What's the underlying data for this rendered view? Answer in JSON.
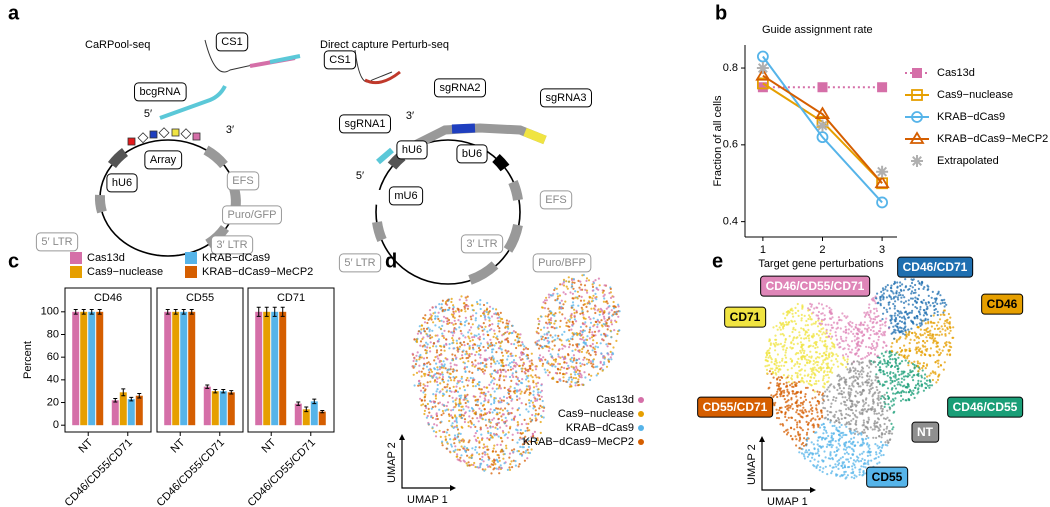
{
  "panel_labels": [
    "a",
    "b",
    "c",
    "d",
    "e"
  ],
  "diagram": {
    "left": {
      "title": "CaRPool-seq",
      "labels": [
        "CS1",
        "bcgRNA",
        "5′",
        "3′",
        "Array",
        "hU6",
        "EFS",
        "5′ LTR",
        "Puro/GFP",
        "3′ LTR"
      ]
    },
    "right": {
      "title": "Direct capture Perturb-seq",
      "labels": [
        "CS1",
        "sgRNA2",
        "sgRNA3",
        "sgRNA1",
        "3′",
        "5′",
        "hU6",
        "bU6",
        "mU6",
        "EFS",
        "5′ LTR",
        "3′ LTR",
        "Puro/BFP"
      ]
    }
  },
  "chart_data": [
    {
      "type": "line",
      "title": "Guide assignment rate",
      "xlabel": "Target gene perturbations",
      "ylabel": "Fraction of all cells",
      "x": [
        1,
        2,
        3
      ],
      "xlim": [
        0.7,
        3.25
      ],
      "xticks": [
        1,
        2,
        3
      ],
      "ylim": [
        0.36,
        0.86
      ],
      "yticks": [
        0.4,
        0.6,
        0.8
      ],
      "series": [
        {
          "name": "Cas13d",
          "color": "#d56fa8",
          "marker": "square-filled",
          "linestyle": "dotted",
          "values": [
            0.75,
            0.75,
            0.75
          ]
        },
        {
          "name": "Cas9−nuclease",
          "color": "#e69f00",
          "marker": "square-open",
          "linestyle": "solid",
          "values": [
            0.76,
            0.66,
            0.5
          ]
        },
        {
          "name": "KRAB−dCas9",
          "color": "#56b4e9",
          "marker": "circle-open",
          "linestyle": "solid",
          "values": [
            0.83,
            0.62,
            0.45
          ]
        },
        {
          "name": "KRAB−dCas9−MeCP2",
          "color": "#d55e00",
          "marker": "triangle-open",
          "linestyle": "solid",
          "values": [
            0.78,
            0.68,
            0.5
          ]
        },
        {
          "name": "Extrapolated",
          "color": "#b0b0b0",
          "marker": "star",
          "linestyle": "none",
          "values": [
            0.8,
            0.65,
            0.53
          ]
        }
      ]
    },
    {
      "type": "bar",
      "ylabel": "Percent",
      "categories": [
        "NT",
        "CD46/CD55/CD71"
      ],
      "ylim": [
        -6,
        121
      ],
      "yticks": [
        0,
        20,
        40,
        60,
        80,
        100
      ],
      "series": [
        {
          "name": "Cas13d",
          "color": "#d56fa8"
        },
        {
          "name": "Cas9−nuclease",
          "color": "#e69f00"
        },
        {
          "name": "KRAB−dCas9",
          "color": "#56b4e9"
        },
        {
          "name": "KRAB−dCas9−MeCP2",
          "color": "#d55e00"
        }
      ],
      "facets": [
        {
          "title": "CD46",
          "values": [
            [
              100,
              22
            ],
            [
              100,
              29
            ],
            [
              100,
              23
            ],
            [
              100,
              26
            ]
          ],
          "errors": [
            [
              2,
              1.5
            ],
            [
              2,
              3
            ],
            [
              2,
              1.5
            ],
            [
              2,
              2
            ]
          ]
        },
        {
          "title": "CD55",
          "values": [
            [
              100,
              34
            ],
            [
              100,
              30
            ],
            [
              100,
              30
            ],
            [
              100,
              29
            ]
          ],
          "errors": [
            [
              2,
              1.5
            ],
            [
              2,
              1.5
            ],
            [
              2,
              1.5
            ],
            [
              2,
              1.5
            ]
          ]
        },
        {
          "title": "CD71",
          "values": [
            [
              100,
              19
            ],
            [
              100,
              14
            ],
            [
              100,
              21
            ],
            [
              100,
              12
            ]
          ],
          "errors": [
            [
              4,
              1.5
            ],
            [
              4,
              2
            ],
            [
              4,
              2
            ],
            [
              4,
              1
            ]
          ]
        }
      ]
    }
  ],
  "umap_d": {
    "xlabel": "UMAP 1",
    "ylabel": "UMAP 2",
    "legend": [
      {
        "name": "Cas13d",
        "color": "#d56fa8"
      },
      {
        "name": "Cas9−nuclease",
        "color": "#e69f00"
      },
      {
        "name": "KRAB−dCas9",
        "color": "#56b4e9"
      },
      {
        "name": "KRAB−dCas9−MeCP2",
        "color": "#d55e00"
      }
    ]
  },
  "umap_e": {
    "xlabel": "UMAP 1",
    "ylabel": "UMAP 2",
    "clusters": [
      {
        "label": "CD46/CD71",
        "color": "#1f6fb0",
        "text_color": "#ffffff"
      },
      {
        "label": "CD46/CD55/CD71",
        "color": "#df86b8",
        "text_color": "#ffffff"
      },
      {
        "label": "CD46",
        "color": "#e69f00",
        "text_color": "#000000"
      },
      {
        "label": "CD71",
        "color": "#f0e442",
        "text_color": "#000000"
      },
      {
        "label": "CD55/CD71",
        "color": "#d55e00",
        "text_color": "#ffffff"
      },
      {
        "label": "CD46/CD55",
        "color": "#1a9e77",
        "text_color": "#ffffff"
      },
      {
        "label": "NT",
        "color": "#8f8f8f",
        "text_color": "#ffffff"
      },
      {
        "label": "CD55",
        "color": "#56b4e9",
        "text_color": "#000000"
      }
    ]
  }
}
